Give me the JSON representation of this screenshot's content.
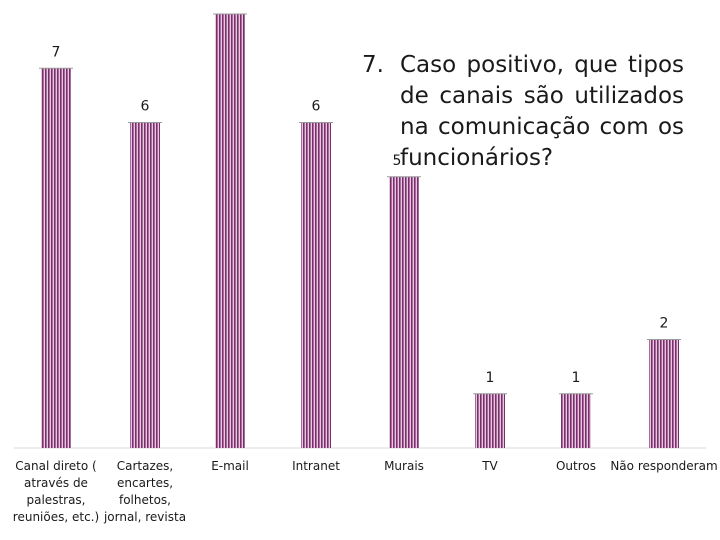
{
  "question": {
    "number": "7.",
    "text": "Caso positivo, que tipos de canais são utilizados na comunicação com os funcionários?"
  },
  "chart_data": {
    "type": "bar",
    "title": "7. Caso positivo, que tipos de canais são utilizados na comunicação com os funcionários?",
    "xlabel": "",
    "ylabel": "",
    "categories": [
      "Canal direto ( através de palestras, reuniões, etc.)",
      "Cartazes, encartes, folhetos, jornal, revista",
      "E-mail",
      "Intranet",
      "Murais",
      "TV",
      "Outros",
      "Não responderam"
    ],
    "category_lines": [
      [
        "Canal direto (",
        "através de",
        "palestras,",
        "reuniões, etc.)"
      ],
      [
        "Cartazes,",
        "encartes,",
        "folhetos,",
        "jornal, revista"
      ],
      [
        "E-mail"
      ],
      [
        "Intranet"
      ],
      [
        "Murais"
      ],
      [
        "TV"
      ],
      [
        "Outros"
      ],
      [
        "Não responderam"
      ]
    ],
    "values": [
      7,
      6,
      8,
      6,
      5,
      1,
      1,
      2
    ],
    "data_labels": [
      "7",
      "6",
      "",
      "6",
      "5",
      "1",
      "1",
      "2"
    ],
    "ylim": [
      0,
      8
    ],
    "grid": false,
    "legend": "none",
    "bar_color": "#7b2d6e",
    "bar_stripe_color": "#e6c9df"
  }
}
